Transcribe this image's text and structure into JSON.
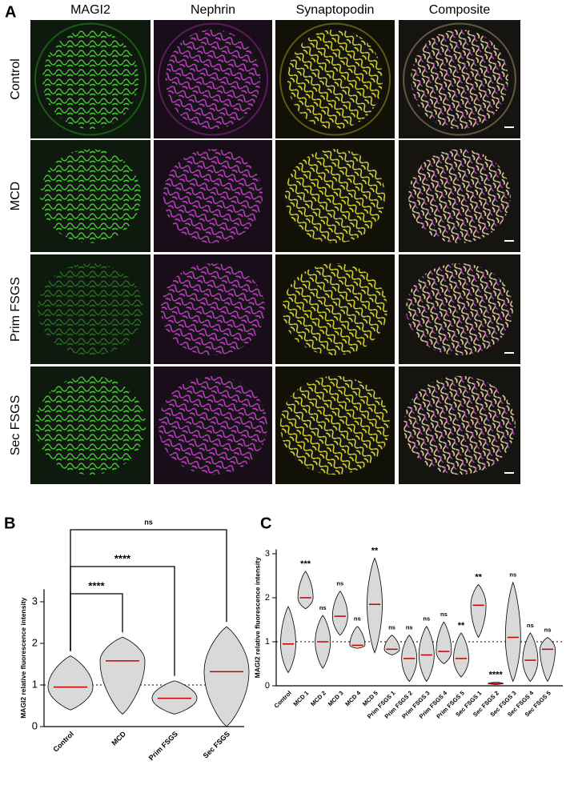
{
  "panel_a": {
    "label": "A",
    "columns": [
      "MAGI2",
      "Nephrin",
      "Synaptopodin",
      "Composite"
    ],
    "rows": [
      "Control",
      "MCD",
      "Prim FSGS",
      "Sec FSGS"
    ]
  },
  "chart_data": [
    {
      "type": "violin",
      "panel_label": "B",
      "y_label": "MAGI2 relative fluorescence intensity",
      "categories": [
        "Control",
        "MCD",
        "Prim FSGS",
        "Sec FSGS"
      ],
      "values": [
        0.95,
        1.58,
        0.68,
        1.32
      ],
      "min": [
        0.4,
        0.3,
        0.3,
        0.0
      ],
      "max": [
        1.7,
        2.15,
        1.1,
        2.4
      ],
      "annotations": [
        "****",
        "****",
        "ns"
      ],
      "reference_line": 1,
      "ylim": [
        0,
        3.3
      ],
      "yticks": [
        0,
        1,
        2,
        3
      ],
      "color": "#d9d9d9",
      "median_color": "#c00000"
    },
    {
      "type": "violin",
      "panel_label": "C",
      "y_label": "MAGI2 relative fluorescence intensity",
      "categories": [
        "Control",
        "MCD 1",
        "MCD 2",
        "MCD 3",
        "MCD 4",
        "MCD 5",
        "Prim FSGS 1",
        "Prim FSGS 2",
        "Prim FSGS 3",
        "Prim FSGS 4",
        "Prim FSGS 5",
        "Sec FSGS 1",
        "Sec FSGS 2",
        "Sec FSGS 3",
        "Sec FSGS 4",
        "Sec FSGS 5"
      ],
      "values": [
        0.95,
        2.0,
        1.0,
        1.58,
        0.92,
        1.85,
        0.83,
        0.62,
        0.7,
        0.78,
        0.62,
        1.83,
        0.05,
        1.1,
        0.58,
        0.83
      ],
      "min": [
        0.3,
        1.75,
        0.4,
        1.15,
        0.85,
        0.75,
        0.7,
        0.1,
        0.1,
        0.5,
        0.2,
        1.1,
        0.03,
        0.1,
        0.1,
        0.1
      ],
      "max": [
        1.8,
        2.6,
        1.6,
        2.15,
        1.35,
        2.9,
        1.15,
        1.15,
        1.35,
        1.45,
        1.2,
        2.3,
        0.08,
        2.35,
        1.2,
        1.1
      ],
      "annotations": [
        null,
        "***",
        "ns",
        "ns",
        "ns",
        "**",
        "ns",
        "ns",
        "ns",
        "ns",
        "**",
        "**",
        "****",
        "ns",
        "ns",
        "ns"
      ],
      "reference_line": 1,
      "ylim": [
        0,
        3.1
      ],
      "yticks": [
        0,
        1,
        2,
        3
      ],
      "color": "#d9d9d9",
      "median_color": "#c00000"
    }
  ]
}
